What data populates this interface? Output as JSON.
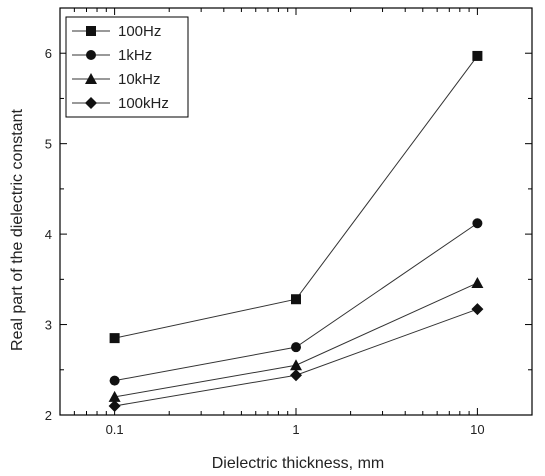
{
  "chart_data": {
    "type": "line",
    "xlabel": "Dielectric thickness, mm",
    "ylabel": "Real part of the dielectric constant",
    "x": [
      0.1,
      1,
      10
    ],
    "x_tick_labels": [
      "0.1",
      "1",
      "10"
    ],
    "x_scale": "log",
    "xlim": [
      0.05,
      20
    ],
    "ylim": [
      2,
      6.5
    ],
    "y_ticks": [
      2,
      3,
      4,
      5,
      6
    ],
    "y_tick_labels": [
      "2",
      "3",
      "4",
      "5",
      "6"
    ],
    "legend_position": "top-left",
    "grid": false,
    "series": [
      {
        "name": "100Hz",
        "marker": "square",
        "values": [
          2.85,
          3.28,
          5.97
        ]
      },
      {
        "name": "1kHz",
        "marker": "circle",
        "values": [
          2.38,
          2.75,
          4.12
        ]
      },
      {
        "name": "10kHz",
        "marker": "triangle",
        "values": [
          2.2,
          2.55,
          3.46
        ]
      },
      {
        "name": "100kHz",
        "marker": "diamond",
        "values": [
          2.1,
          2.44,
          3.17
        ]
      }
    ]
  }
}
